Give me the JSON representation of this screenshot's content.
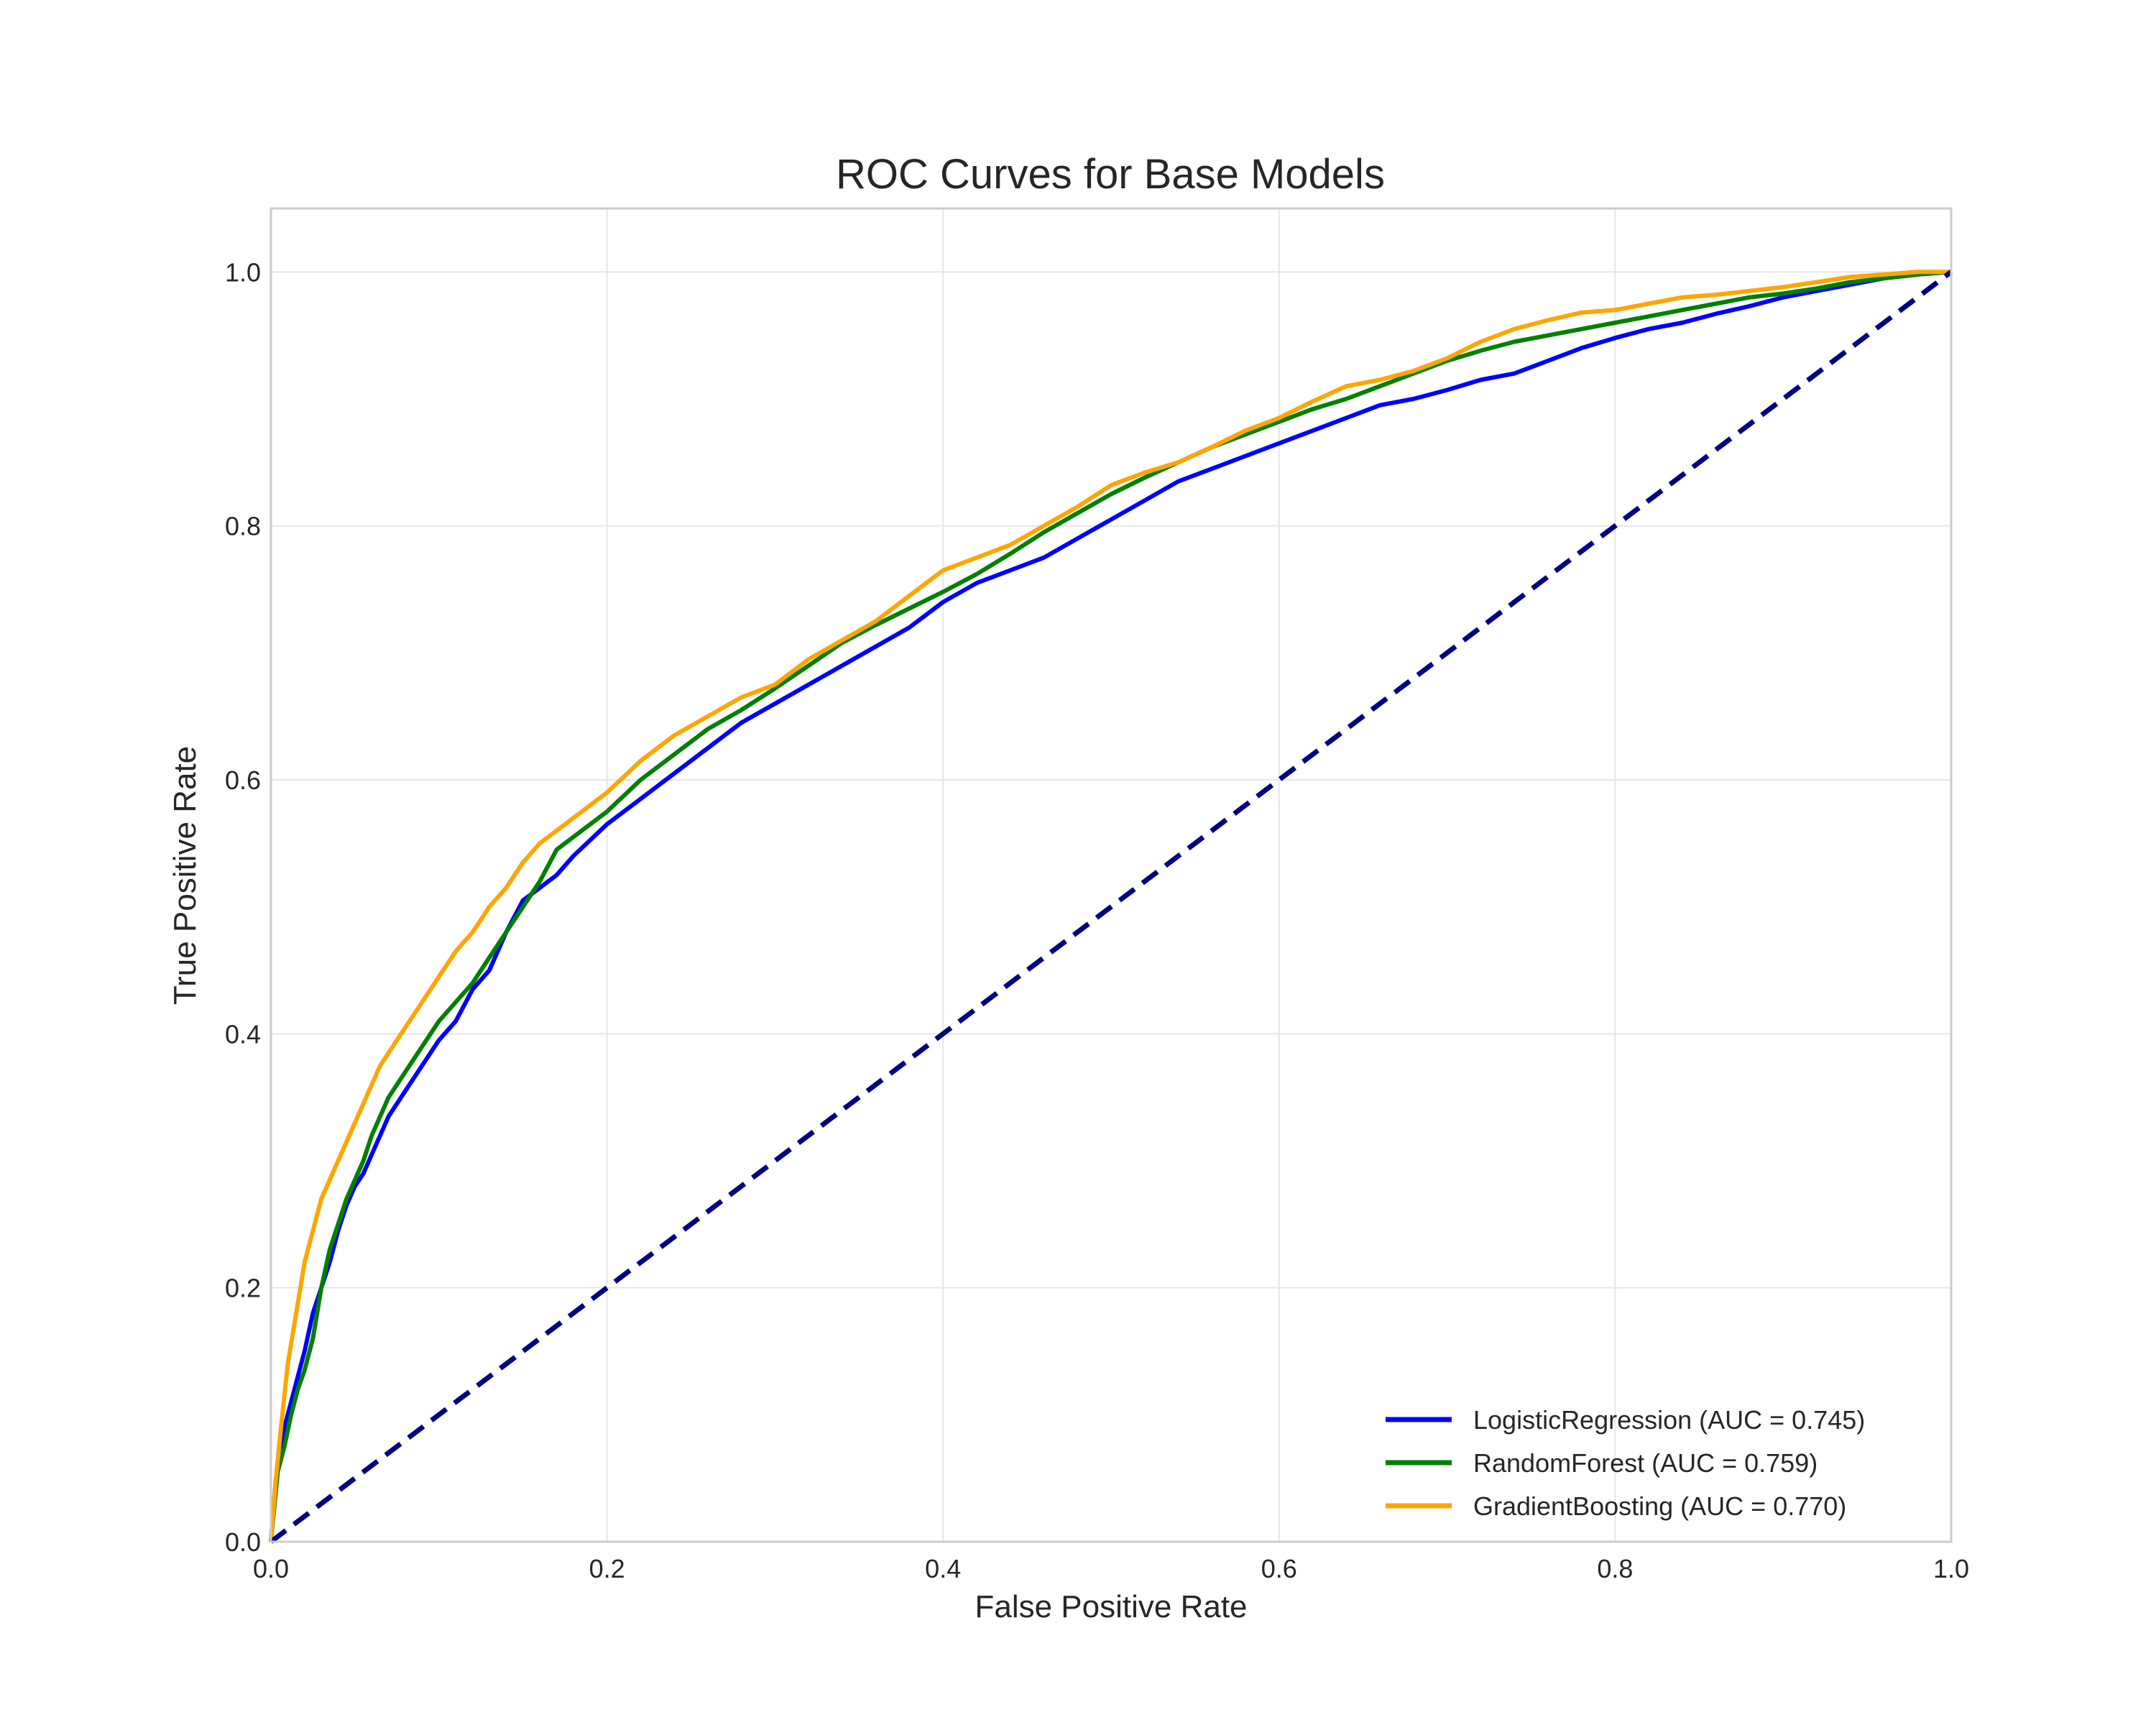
{
  "chart_data": {
    "type": "line",
    "title": "ROC Curves for Base Models",
    "xlabel": "False Positive Rate",
    "ylabel": "True Positive Rate",
    "xlim": [
      0.0,
      1.0
    ],
    "ylim": [
      0.0,
      1.05
    ],
    "x_ticks": [
      "0.0",
      "0.2",
      "0.4",
      "0.6",
      "0.8",
      "1.0"
    ],
    "y_ticks": [
      "0.0",
      "0.2",
      "0.4",
      "0.6",
      "0.8",
      "1.0"
    ],
    "grid": true,
    "legend_position": "lower-right",
    "series": [
      {
        "name": "LogisticRegression (AUC = 0.745)",
        "color": "#0000ff",
        "points": [
          [
            0,
            0
          ],
          [
            0.003,
            0.05
          ],
          [
            0.008,
            0.09
          ],
          [
            0.012,
            0.11
          ],
          [
            0.016,
            0.13
          ],
          [
            0.02,
            0.15
          ],
          [
            0.025,
            0.18
          ],
          [
            0.03,
            0.2
          ],
          [
            0.035,
            0.22
          ],
          [
            0.04,
            0.245
          ],
          [
            0.045,
            0.265
          ],
          [
            0.05,
            0.28
          ],
          [
            0.055,
            0.29
          ],
          [
            0.06,
            0.305
          ],
          [
            0.065,
            0.32
          ],
          [
            0.07,
            0.335
          ],
          [
            0.08,
            0.355
          ],
          [
            0.09,
            0.375
          ],
          [
            0.1,
            0.395
          ],
          [
            0.11,
            0.41
          ],
          [
            0.12,
            0.435
          ],
          [
            0.13,
            0.45
          ],
          [
            0.14,
            0.48
          ],
          [
            0.15,
            0.505
          ],
          [
            0.16,
            0.515
          ],
          [
            0.17,
            0.525
          ],
          [
            0.18,
            0.54
          ],
          [
            0.2,
            0.565
          ],
          [
            0.22,
            0.585
          ],
          [
            0.24,
            0.605
          ],
          [
            0.26,
            0.625
          ],
          [
            0.28,
            0.645
          ],
          [
            0.3,
            0.66
          ],
          [
            0.32,
            0.675
          ],
          [
            0.34,
            0.69
          ],
          [
            0.36,
            0.705
          ],
          [
            0.38,
            0.72
          ],
          [
            0.4,
            0.74
          ],
          [
            0.42,
            0.755
          ],
          [
            0.44,
            0.765
          ],
          [
            0.46,
            0.775
          ],
          [
            0.48,
            0.79
          ],
          [
            0.5,
            0.805
          ],
          [
            0.52,
            0.82
          ],
          [
            0.54,
            0.835
          ],
          [
            0.56,
            0.845
          ],
          [
            0.58,
            0.855
          ],
          [
            0.6,
            0.865
          ],
          [
            0.62,
            0.875
          ],
          [
            0.64,
            0.885
          ],
          [
            0.66,
            0.895
          ],
          [
            0.68,
            0.9
          ],
          [
            0.7,
            0.907
          ],
          [
            0.72,
            0.915
          ],
          [
            0.74,
            0.92
          ],
          [
            0.76,
            0.93
          ],
          [
            0.78,
            0.94
          ],
          [
            0.8,
            0.948
          ],
          [
            0.82,
            0.955
          ],
          [
            0.84,
            0.96
          ],
          [
            0.86,
            0.967
          ],
          [
            0.88,
            0.973
          ],
          [
            0.9,
            0.98
          ],
          [
            0.92,
            0.985
          ],
          [
            0.94,
            0.99
          ],
          [
            0.96,
            0.995
          ],
          [
            0.98,
            0.998
          ],
          [
            1.0,
            1.0
          ]
        ]
      },
      {
        "name": "RandomForest (AUC = 0.759)",
        "color": "#008000",
        "points": [
          [
            0,
            0
          ],
          [
            0.004,
            0.055
          ],
          [
            0.008,
            0.075
          ],
          [
            0.012,
            0.1
          ],
          [
            0.016,
            0.12
          ],
          [
            0.02,
            0.135
          ],
          [
            0.025,
            0.16
          ],
          [
            0.03,
            0.2
          ],
          [
            0.035,
            0.23
          ],
          [
            0.04,
            0.25
          ],
          [
            0.045,
            0.27
          ],
          [
            0.05,
            0.285
          ],
          [
            0.055,
            0.3
          ],
          [
            0.06,
            0.32
          ],
          [
            0.065,
            0.335
          ],
          [
            0.07,
            0.35
          ],
          [
            0.08,
            0.37
          ],
          [
            0.09,
            0.39
          ],
          [
            0.1,
            0.41
          ],
          [
            0.11,
            0.425
          ],
          [
            0.12,
            0.44
          ],
          [
            0.13,
            0.46
          ],
          [
            0.14,
            0.48
          ],
          [
            0.15,
            0.5
          ],
          [
            0.16,
            0.52
          ],
          [
            0.17,
            0.545
          ],
          [
            0.18,
            0.555
          ],
          [
            0.2,
            0.575
          ],
          [
            0.22,
            0.6
          ],
          [
            0.24,
            0.62
          ],
          [
            0.26,
            0.64
          ],
          [
            0.28,
            0.655
          ],
          [
            0.3,
            0.672
          ],
          [
            0.32,
            0.69
          ],
          [
            0.34,
            0.708
          ],
          [
            0.36,
            0.722
          ],
          [
            0.38,
            0.735
          ],
          [
            0.4,
            0.748
          ],
          [
            0.42,
            0.762
          ],
          [
            0.44,
            0.778
          ],
          [
            0.46,
            0.795
          ],
          [
            0.48,
            0.81
          ],
          [
            0.5,
            0.825
          ],
          [
            0.52,
            0.838
          ],
          [
            0.54,
            0.85
          ],
          [
            0.56,
            0.862
          ],
          [
            0.58,
            0.872
          ],
          [
            0.6,
            0.882
          ],
          [
            0.62,
            0.892
          ],
          [
            0.64,
            0.9
          ],
          [
            0.66,
            0.91
          ],
          [
            0.68,
            0.92
          ],
          [
            0.7,
            0.93
          ],
          [
            0.72,
            0.938
          ],
          [
            0.74,
            0.945
          ],
          [
            0.76,
            0.95
          ],
          [
            0.78,
            0.955
          ],
          [
            0.8,
            0.96
          ],
          [
            0.82,
            0.965
          ],
          [
            0.84,
            0.97
          ],
          [
            0.86,
            0.975
          ],
          [
            0.88,
            0.98
          ],
          [
            0.9,
            0.983
          ],
          [
            0.92,
            0.987
          ],
          [
            0.94,
            0.992
          ],
          [
            0.96,
            0.995
          ],
          [
            0.98,
            0.998
          ],
          [
            1.0,
            1.0
          ]
        ]
      },
      {
        "name": "GradientBoosting (AUC = 0.770)",
        "color": "#ffa500",
        "points": [
          [
            0,
            0
          ],
          [
            0.003,
            0.05
          ],
          [
            0.006,
            0.09
          ],
          [
            0.01,
            0.14
          ],
          [
            0.015,
            0.18
          ],
          [
            0.02,
            0.22
          ],
          [
            0.025,
            0.245
          ],
          [
            0.03,
            0.27
          ],
          [
            0.035,
            0.285
          ],
          [
            0.04,
            0.3
          ],
          [
            0.045,
            0.315
          ],
          [
            0.05,
            0.33
          ],
          [
            0.055,
            0.345
          ],
          [
            0.06,
            0.36
          ],
          [
            0.065,
            0.375
          ],
          [
            0.07,
            0.385
          ],
          [
            0.08,
            0.405
          ],
          [
            0.09,
            0.425
          ],
          [
            0.1,
            0.445
          ],
          [
            0.11,
            0.465
          ],
          [
            0.12,
            0.48
          ],
          [
            0.13,
            0.5
          ],
          [
            0.14,
            0.515
          ],
          [
            0.15,
            0.535
          ],
          [
            0.16,
            0.55
          ],
          [
            0.17,
            0.56
          ],
          [
            0.18,
            0.57
          ],
          [
            0.2,
            0.59
          ],
          [
            0.22,
            0.615
          ],
          [
            0.24,
            0.635
          ],
          [
            0.26,
            0.65
          ],
          [
            0.28,
            0.665
          ],
          [
            0.3,
            0.675
          ],
          [
            0.32,
            0.695
          ],
          [
            0.34,
            0.71
          ],
          [
            0.36,
            0.725
          ],
          [
            0.38,
            0.745
          ],
          [
            0.4,
            0.765
          ],
          [
            0.42,
            0.775
          ],
          [
            0.44,
            0.785
          ],
          [
            0.46,
            0.8
          ],
          [
            0.48,
            0.815
          ],
          [
            0.5,
            0.832
          ],
          [
            0.52,
            0.842
          ],
          [
            0.54,
            0.85
          ],
          [
            0.56,
            0.862
          ],
          [
            0.58,
            0.875
          ],
          [
            0.6,
            0.885
          ],
          [
            0.62,
            0.898
          ],
          [
            0.64,
            0.91
          ],
          [
            0.66,
            0.915
          ],
          [
            0.68,
            0.922
          ],
          [
            0.7,
            0.932
          ],
          [
            0.72,
            0.945
          ],
          [
            0.74,
            0.955
          ],
          [
            0.76,
            0.962
          ],
          [
            0.78,
            0.968
          ],
          [
            0.8,
            0.97
          ],
          [
            0.82,
            0.975
          ],
          [
            0.84,
            0.98
          ],
          [
            0.86,
            0.982
          ],
          [
            0.88,
            0.985
          ],
          [
            0.9,
            0.988
          ],
          [
            0.92,
            0.992
          ],
          [
            0.94,
            0.996
          ],
          [
            0.96,
            0.998
          ],
          [
            0.98,
            1.0
          ],
          [
            1.0,
            1.0
          ]
        ]
      },
      {
        "name": "",
        "role": "chance-diagonal",
        "color": "#000080",
        "dashed": true,
        "points": [
          [
            0,
            0
          ],
          [
            1,
            1
          ]
        ]
      }
    ]
  }
}
